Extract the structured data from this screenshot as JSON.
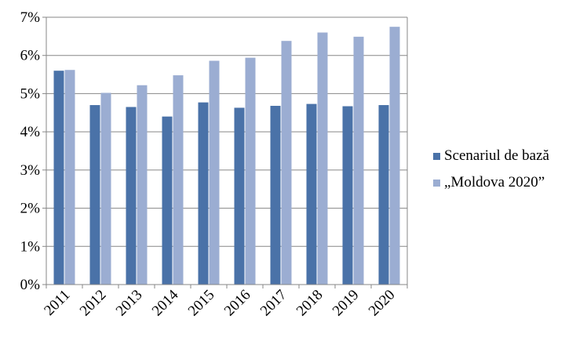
{
  "chart_data": {
    "type": "bar",
    "categories": [
      "2011",
      "2012",
      "2013",
      "2014",
      "2015",
      "2016",
      "2017",
      "2018",
      "2019",
      "2020"
    ],
    "series": [
      {
        "name": "Scenariul de bază",
        "color": "#4a72a8",
        "values": [
          5.6,
          4.7,
          4.65,
          4.4,
          4.77,
          4.63,
          4.68,
          4.73,
          4.67,
          4.7
        ]
      },
      {
        "name": "„Moldova 2020”",
        "color": "#9badd2",
        "values": [
          5.62,
          5.02,
          5.22,
          5.48,
          5.86,
          5.94,
          6.38,
          6.6,
          6.49,
          6.75
        ]
      }
    ],
    "y_ticks": [
      "0%",
      "1%",
      "2%",
      "3%",
      "4%",
      "5%",
      "6%",
      "7%"
    ],
    "ylim": [
      0,
      7
    ],
    "y_unit": "%",
    "grid": true,
    "legend_position": "right",
    "title": "",
    "xlabel": "",
    "ylabel": ""
  }
}
